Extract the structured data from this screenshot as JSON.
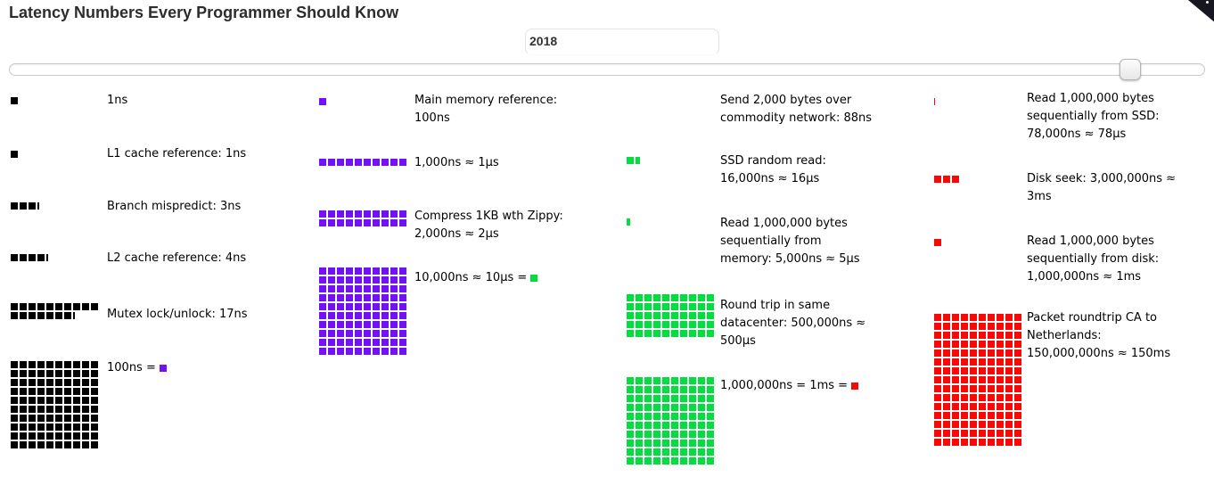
{
  "page": {
    "title": "Latency Numbers Every Programmer Should Know",
    "year": "2018"
  },
  "slider": {
    "value": "2018",
    "thumb_position_percent": 94
  },
  "colors": {
    "ns_black": "#000000",
    "hundred_ns_purple": "#7211f4",
    "ten_us_green": "#00df3e",
    "ms_red": "#f90808"
  },
  "columns": [
    {
      "unit": "1 square = 1ns",
      "items": [
        {
          "label": "1ns",
          "boxes": 1,
          "color": "#000000"
        },
        {
          "label": "L1 cache reference: 1ns",
          "boxes": 1,
          "color": "#000000"
        },
        {
          "label": "Branch mispredict: 3ns",
          "boxes": 3.3,
          "color": "#000000"
        },
        {
          "label": "L2 cache reference: 4ns",
          "boxes": 4.3,
          "color": "#000000"
        },
        {
          "label": "Mutex lock/unlock: 17ns",
          "boxes": 17.2,
          "color": "#000000"
        },
        {
          "label": "100ns = ",
          "boxes": 100,
          "color": "#000000",
          "swatch": "#7211f4"
        }
      ]
    },
    {
      "unit": "1 square = 100ns",
      "items": [
        {
          "label": "Main memory reference:\n100ns",
          "boxes": 1,
          "color": "#7211f4"
        },
        {
          "label": "1,000ns ≈ 1μs",
          "boxes": 10,
          "color": "#7211f4"
        },
        {
          "label": "Compress 1KB wth Zippy:\n2,000ns ≈ 2μs",
          "boxes": 20,
          "color": "#7211f4"
        },
        {
          "label": "10,000ns ≈ 10μs = ",
          "boxes": 100,
          "color": "#7211f4",
          "swatch": "#00df3e"
        }
      ]
    },
    {
      "unit": "1 square = 10μs",
      "items": [
        {
          "label": "Send 2,000 bytes over\ncommodity network: 88ns",
          "boxes": 0.0088,
          "color": "#00df3e"
        },
        {
          "label": "SSD random read:\n16,000ns ≈ 16μs",
          "boxes": 1.6,
          "color": "#00df3e"
        },
        {
          "label": "Read 1,000,000 bytes\nsequentially from\nmemory: 5,000ns ≈ 5μs",
          "boxes": 0.5,
          "color": "#00df3e"
        },
        {
          "label": "Round trip in same\ndatacenter: 500,000ns ≈\n500μs",
          "boxes": 50,
          "color": "#00df3e"
        },
        {
          "label": "1,000,000ns = 1ms = ",
          "boxes": 100,
          "color": "#00df3e",
          "swatch": "#f90808"
        }
      ]
    },
    {
      "unit": "1 square = 1ms",
      "items": [
        {
          "label": "Read 1,000,000 bytes\nsequentially from SSD:\n78,000ns ≈ 78μs",
          "boxes": 0.078,
          "color": "#f90808"
        },
        {
          "label": "Disk seek: 3,000,000ns ≈\n3ms",
          "boxes": 3,
          "color": "#f90808"
        },
        {
          "label": "Read 1,000,000 bytes\nsequentially from disk:\n1,000,000ns ≈ 1ms",
          "boxes": 1,
          "color": "#f90808"
        },
        {
          "label": "Packet roundtrip CA to\nNetherlands:\n150,000,000ns ≈ 150ms",
          "boxes": 150,
          "color": "#f90808"
        }
      ]
    }
  ],
  "chart_data": {
    "type": "bar",
    "variant": "waffle-unit-squares",
    "title": "Latency Numbers Every Programmer Should Know",
    "year": "2018",
    "legend": [
      {
        "color": "#000000",
        "square_equals_ns": 1
      },
      {
        "color": "#7211f4",
        "square_equals_ns": 100
      },
      {
        "color": "#00df3e",
        "square_equals_ns": 10000
      },
      {
        "color": "#f90808",
        "square_equals_ns": 1000000
      }
    ],
    "items": [
      {
        "label": "1ns",
        "ns": 1
      },
      {
        "label": "L1 cache reference",
        "ns": 1
      },
      {
        "label": "Branch mispredict",
        "ns": 3
      },
      {
        "label": "L2 cache reference",
        "ns": 4
      },
      {
        "label": "Mutex lock/unlock",
        "ns": 17
      },
      {
        "label": "Main memory reference",
        "ns": 100
      },
      {
        "label": "1,000ns ≈ 1μs",
        "ns": 1000
      },
      {
        "label": "Compress 1KB wth Zippy",
        "ns": 2000
      },
      {
        "label": "10,000ns ≈ 10μs",
        "ns": 10000
      },
      {
        "label": "Send 2,000 bytes over commodity network",
        "ns": 88
      },
      {
        "label": "SSD random read",
        "ns": 16000
      },
      {
        "label": "Read 1,000,000 bytes sequentially from memory",
        "ns": 5000
      },
      {
        "label": "Round trip in same datacenter",
        "ns": 500000
      },
      {
        "label": "1,000,000ns = 1ms",
        "ns": 1000000
      },
      {
        "label": "Read 1,000,000 bytes sequentially from SSD",
        "ns": 78000
      },
      {
        "label": "Disk seek",
        "ns": 3000000
      },
      {
        "label": "Read 1,000,000 bytes sequentially from disk",
        "ns": 1000000
      },
      {
        "label": "Packet roundtrip CA to Netherlands",
        "ns": 150000000
      }
    ]
  }
}
